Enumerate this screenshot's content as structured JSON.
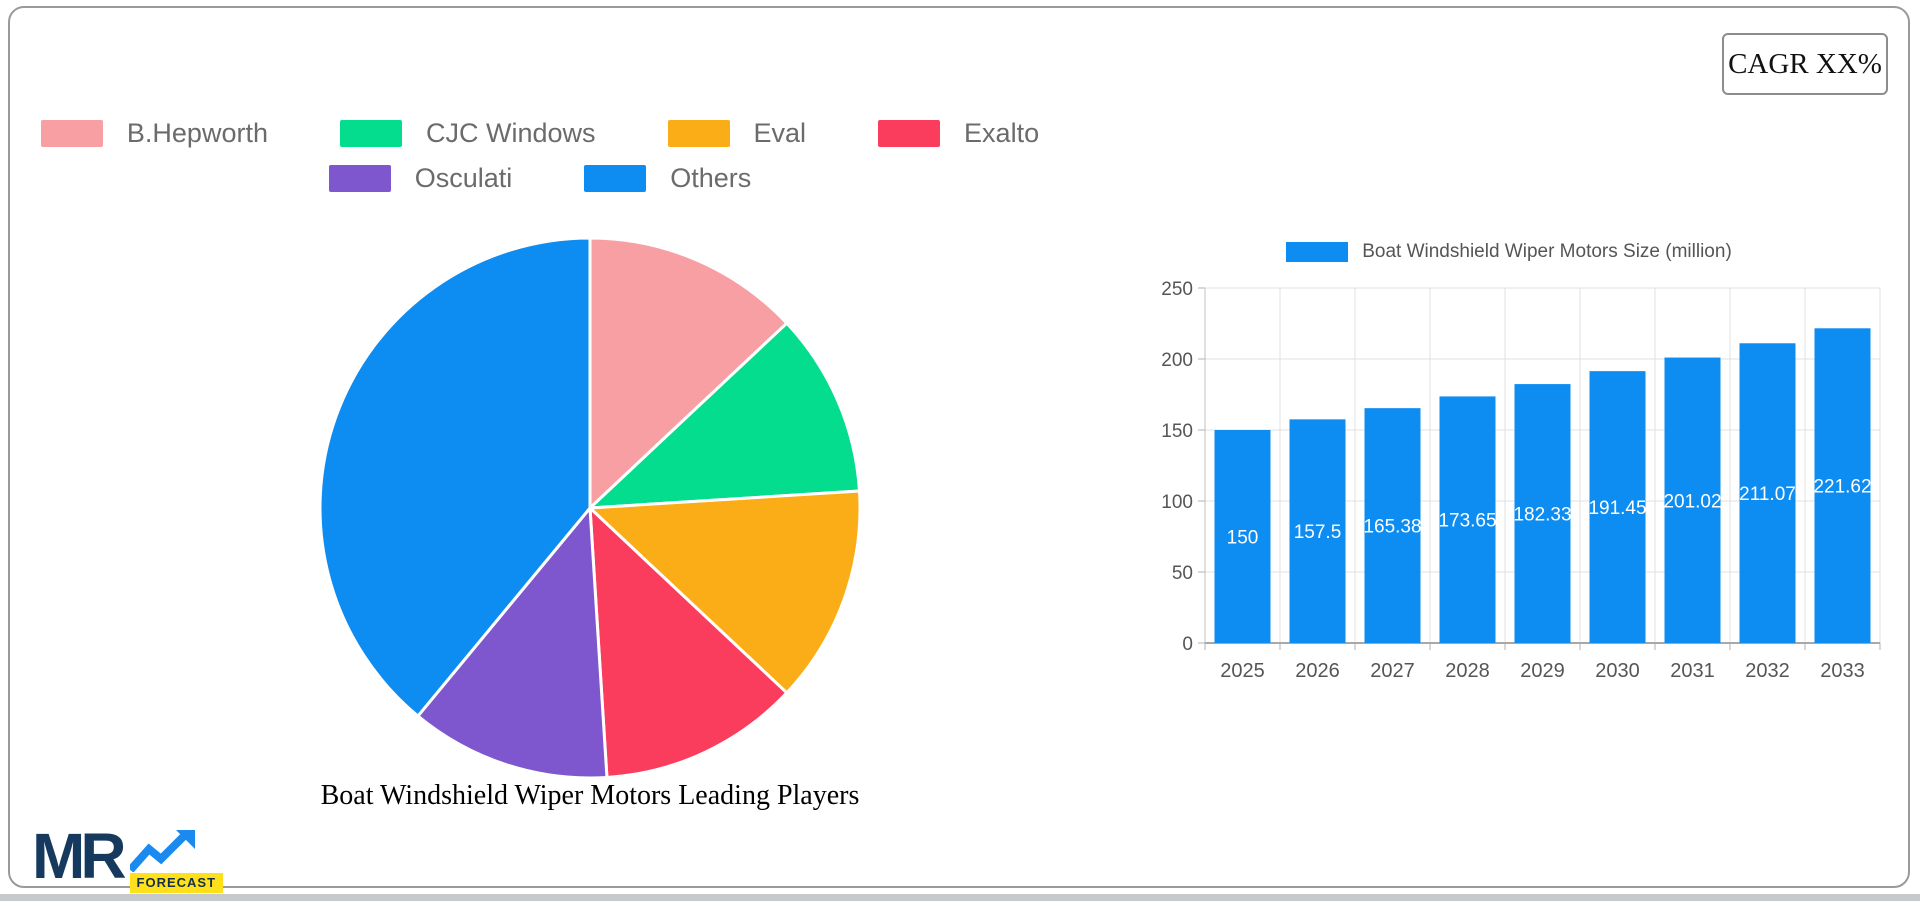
{
  "cagr": {
    "label": "CAGR XX%"
  },
  "logo": {
    "mr": "MR",
    "forecast": "FORECAST",
    "navy": "#16395E",
    "arrow_blue": "#1B8AF0",
    "badge_yellow": "#FFE01A"
  },
  "chart_data": [
    {
      "type": "pie",
      "title": "Boat Windshield Wiper Motors Leading Players",
      "labels": [
        "B.Hepworth",
        "CJC Windows",
        "Eval",
        "Exalto",
        "Osculati",
        "Others"
      ],
      "values_percent": [
        13,
        11,
        13,
        12,
        12,
        39
      ],
      "colors": [
        "#F89FA3",
        "#04DC8E",
        "#FBAD17",
        "#FB3D5D",
        "#7E57CE",
        "#0D8CF2"
      ],
      "start_angle_deg": 0,
      "direction": "clockwise",
      "legend_position": "top",
      "slice_border_color": "#ffffff"
    },
    {
      "type": "bar",
      "legend_label": "Boat Windshield Wiper Motors Size (million)",
      "categories": [
        "2025",
        "2026",
        "2027",
        "2028",
        "2029",
        "2030",
        "2031",
        "2032",
        "2033"
      ],
      "values": [
        150,
        157.5,
        165.38,
        173.65,
        182.33,
        191.45,
        201.02,
        211.07,
        221.62
      ],
      "value_labels": [
        "150",
        "157.5",
        "165.38",
        "173.65",
        "182.33",
        "191.45",
        "201.02",
        "211.07",
        "221.62"
      ],
      "ylim": [
        0,
        250
      ],
      "ytick_step": 50,
      "bar_color": "#0D8CF2",
      "value_label_color": "#ffffff",
      "grid": true,
      "axis_text_color": "#555555"
    }
  ]
}
